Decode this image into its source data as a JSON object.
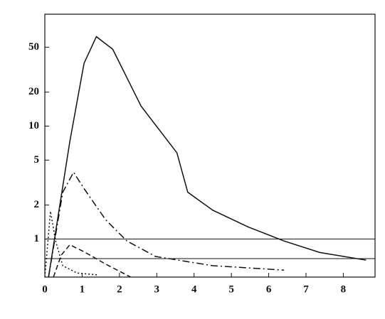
{
  "chart_data": {
    "type": "line",
    "log_y": true,
    "xlim": [
      0,
      8.85
    ],
    "ylim": [
      0.46,
      98
    ],
    "xticks": [
      0,
      1,
      2,
      3,
      4,
      5,
      6,
      7,
      8
    ],
    "yticks": [
      1,
      2,
      5,
      10,
      20,
      50
    ],
    "hlines": [
      1,
      0.67
    ],
    "series": [
      {
        "color": "#111",
        "dash": "solid",
        "x": [
          0.1,
          0.67,
          1.05,
          1.38,
          1.82,
          2.58,
          3.54,
          3.83,
          4.5,
          5.45,
          6.41,
          7.37,
          8.61
        ],
        "values": [
          0.46,
          7.3,
          36,
          62,
          48,
          15,
          5.8,
          2.6,
          1.8,
          1.28,
          0.96,
          0.76,
          0.65
        ]
      },
      {
        "color": "#111",
        "dash": "dashdot",
        "x": [
          0.1,
          0.48,
          0.77,
          1.05,
          1.63,
          2.2,
          2.97,
          4.5,
          6.41
        ],
        "values": [
          0.46,
          2.6,
          3.9,
          2.8,
          1.48,
          0.96,
          0.7,
          0.58,
          0.53
        ]
      },
      {
        "color": "#111",
        "dash": "dashed",
        "x": [
          0.23,
          0.44,
          0.67,
          1.05,
          1.63,
          2.3
        ],
        "values": [
          0.46,
          0.72,
          0.89,
          0.77,
          0.6,
          0.46
        ]
      },
      {
        "color": "#111",
        "dash": "dotted",
        "x": [
          0,
          0.15,
          0.29,
          0.48,
          0.86,
          1.44
        ],
        "values": [
          0.46,
          1.76,
          0.96,
          0.58,
          0.5,
          0.48
        ]
      }
    ]
  }
}
